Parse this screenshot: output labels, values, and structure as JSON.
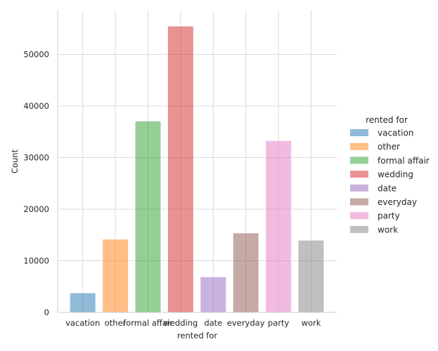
{
  "chart_data": {
    "type": "bar",
    "categories": [
      "vacation",
      "other",
      "formal affair",
      "wedding",
      "date",
      "everyday",
      "party",
      "work"
    ],
    "values": [
      3800,
      14200,
      37100,
      55500,
      6900,
      15400,
      33300,
      14000
    ],
    "xlabel": "rented for",
    "ylabel": "Count",
    "ylim": [
      0,
      58500
    ],
    "yticks": [
      0,
      10000,
      20000,
      30000,
      40000,
      50000
    ],
    "ytick_labels": [
      "0",
      "10000",
      "20000",
      "30000",
      "40000",
      "50000"
    ],
    "grid": true,
    "legend": {
      "title": "rented for",
      "placement": "right",
      "entries": [
        "vacation",
        "other",
        "formal affair",
        "wedding",
        "date",
        "everyday",
        "party",
        "work"
      ]
    },
    "colors": [
      "#1f77b4",
      "#ff7f0e",
      "#2ca02c",
      "#d62728",
      "#9467bd",
      "#8c564b",
      "#e377c2",
      "#7f7f7f"
    ],
    "bar_opacity": 0.5
  }
}
